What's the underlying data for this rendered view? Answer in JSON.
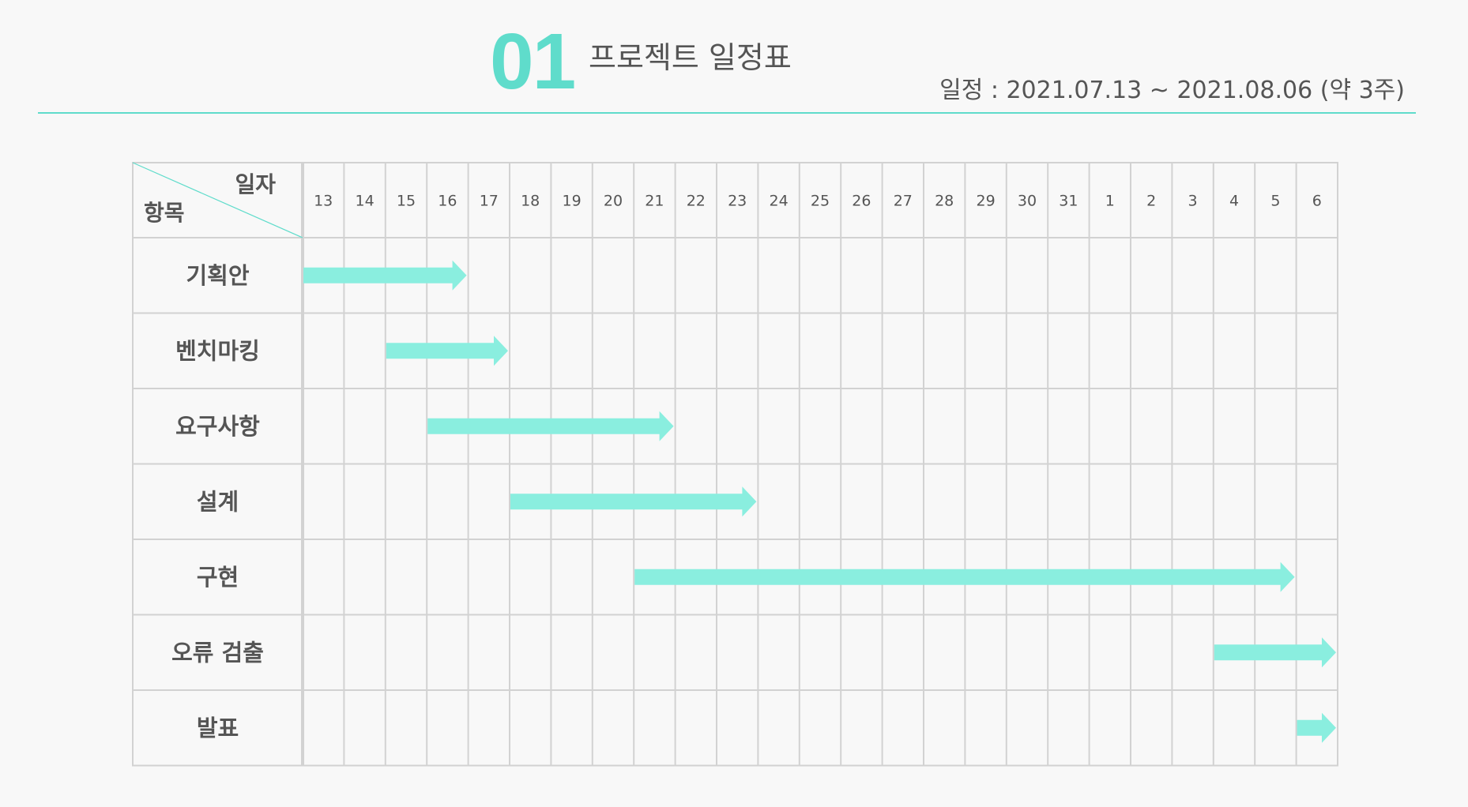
{
  "header": {
    "number": "01",
    "title": "프로젝트 일정표",
    "schedule": "일정 : 2021.07.13 ~ 2021.08.06 (약 3주)"
  },
  "colors": {
    "accent": "#5fdccb",
    "bar": "#8aeedf",
    "grid": "#d2d2d2",
    "text": "#555555"
  },
  "chart_data": {
    "type": "table",
    "corner": {
      "top_right": "일자",
      "bottom_left": "항목"
    },
    "days": [
      "13",
      "14",
      "15",
      "16",
      "17",
      "18",
      "19",
      "20",
      "21",
      "22",
      "23",
      "24",
      "25",
      "26",
      "27",
      "28",
      "29",
      "30",
      "31",
      "1",
      "2",
      "3",
      "4",
      "5",
      "6"
    ],
    "tasks": [
      {
        "label": "기획안",
        "start": "13",
        "end": "16"
      },
      {
        "label": "벤치마킹",
        "start": "15",
        "end": "17"
      },
      {
        "label": "요구사항",
        "start": "16",
        "end": "21"
      },
      {
        "label": "설계",
        "start": "18",
        "end": "23"
      },
      {
        "label": "구현",
        "start": "21",
        "end": "5"
      },
      {
        "label": "오류 검출",
        "start": "4",
        "end": "6"
      },
      {
        "label": "발표",
        "start": "6",
        "end": "6"
      }
    ]
  }
}
